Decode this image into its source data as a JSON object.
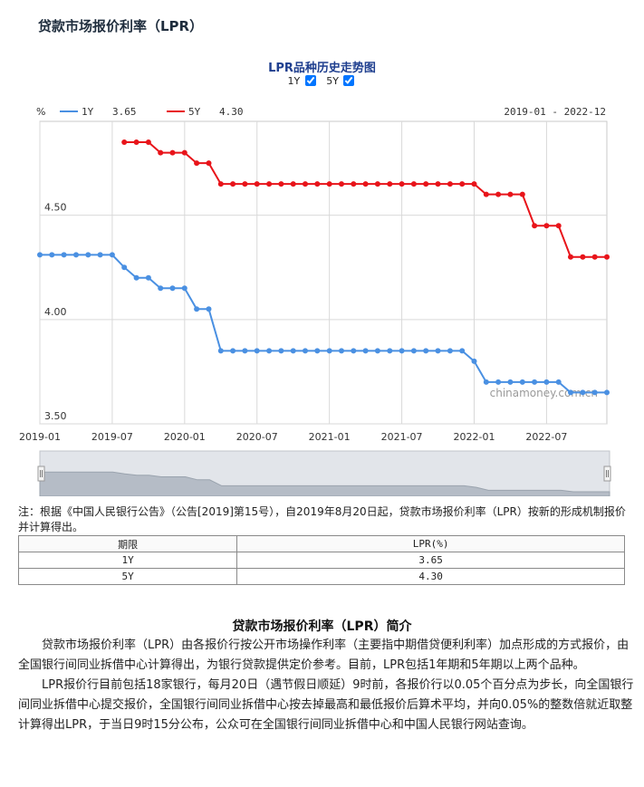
{
  "header": {
    "title": "贷款市场报价利率（LPR）"
  },
  "chart_header": {
    "title": "LPR品种历史走势图",
    "toggle_1y_label": "1Y",
    "toggle_5y_label": "5Y",
    "toggle_1y_checked": true,
    "toggle_5y_checked": true
  },
  "chart_data": {
    "type": "line",
    "title": "LPR品种历史走势图",
    "ylabel": "%",
    "date_range_label": "2019-01 - 2022-12",
    "watermark": "chinamoney.com.cn",
    "ylim": [
      3.5,
      4.95
    ],
    "yticks": [
      4.5,
      4.0,
      3.5
    ],
    "ytick_labels": [
      "4.50",
      "4.00",
      "3.50"
    ],
    "xlim": [
      "2019-01",
      "2022-12"
    ],
    "xtick_labels": [
      "2019-01",
      "2019-07",
      "2020-01",
      "2020-07",
      "2021-01",
      "2021-07",
      "2022-01",
      "2022-07"
    ],
    "x": [
      "2019-01",
      "2019-02",
      "2019-03",
      "2019-04",
      "2019-05",
      "2019-06",
      "2019-07",
      "2019-08",
      "2019-09",
      "2019-10",
      "2019-11",
      "2019-12",
      "2020-01",
      "2020-02",
      "2020-03",
      "2020-04",
      "2020-05",
      "2020-06",
      "2020-07",
      "2020-08",
      "2020-09",
      "2020-10",
      "2020-11",
      "2020-12",
      "2021-01",
      "2021-02",
      "2021-03",
      "2021-04",
      "2021-05",
      "2021-06",
      "2021-07",
      "2021-08",
      "2021-09",
      "2021-10",
      "2021-11",
      "2021-12",
      "2022-01",
      "2022-02",
      "2022-03",
      "2022-04",
      "2022-05",
      "2022-06",
      "2022-07",
      "2022-08",
      "2022-09",
      "2022-10",
      "2022-11",
      "2022-12"
    ],
    "grid": true,
    "legend_position": "top-left",
    "series": [
      {
        "name": "1Y",
        "latest": "3.65",
        "color": "#4a90e2",
        "values": [
          4.31,
          4.31,
          4.31,
          4.31,
          4.31,
          4.31,
          4.31,
          4.25,
          4.2,
          4.2,
          4.15,
          4.15,
          4.15,
          4.05,
          4.05,
          3.85,
          3.85,
          3.85,
          3.85,
          3.85,
          3.85,
          3.85,
          3.85,
          3.85,
          3.85,
          3.85,
          3.85,
          3.85,
          3.85,
          3.85,
          3.85,
          3.85,
          3.85,
          3.85,
          3.85,
          3.85,
          3.8,
          3.7,
          3.7,
          3.7,
          3.7,
          3.7,
          3.7,
          3.7,
          3.65,
          3.65,
          3.65,
          3.65
        ]
      },
      {
        "name": "5Y",
        "latest": "4.30",
        "color": "#e8141a",
        "values": [
          null,
          null,
          null,
          null,
          null,
          null,
          null,
          4.85,
          4.85,
          4.85,
          4.8,
          4.8,
          4.8,
          4.75,
          4.75,
          4.65,
          4.65,
          4.65,
          4.65,
          4.65,
          4.65,
          4.65,
          4.65,
          4.65,
          4.65,
          4.65,
          4.65,
          4.65,
          4.65,
          4.65,
          4.65,
          4.65,
          4.65,
          4.65,
          4.65,
          4.65,
          4.65,
          4.6,
          4.6,
          4.6,
          4.6,
          4.45,
          4.45,
          4.45,
          4.3,
          4.3,
          4.3,
          4.3
        ]
      }
    ]
  },
  "note": {
    "text": "注：根据《中国人民银行公告》（公告[2019]第15号），自2019年8月20日起，贷款市场报价利率（LPR）按新的形成机制报价并计算得出。"
  },
  "table": {
    "headers": [
      "期限",
      "LPR(%)"
    ],
    "rows": [
      [
        "1Y",
        "3.65"
      ],
      [
        "5Y",
        "4.30"
      ]
    ]
  },
  "intro": {
    "title": "贷款市场报价利率（LPR）简介",
    "paragraphs": [
      "贷款市场报价利率（LPR）由各报价行按公开市场操作利率（主要指中期借贷便利利率）加点形成的方式报价，由全国银行间同业拆借中心计算得出，为银行贷款提供定价参考。目前，LPR包括1年期和5年期以上两个品种。",
      "LPR报价行目前包括18家银行，每月20日（遇节假日顺延）9时前，各报价行以0.05个百分点为步长，向全国银行间同业拆借中心提交报价，全国银行间同业拆借中心按去掉最高和最低报价后算术平均，并向0.05%的整数倍就近取整计算得出LPR，于当日9时15分公布，公众可在全国银行间同业拆借中心和中国人民银行网站查询。"
    ]
  }
}
